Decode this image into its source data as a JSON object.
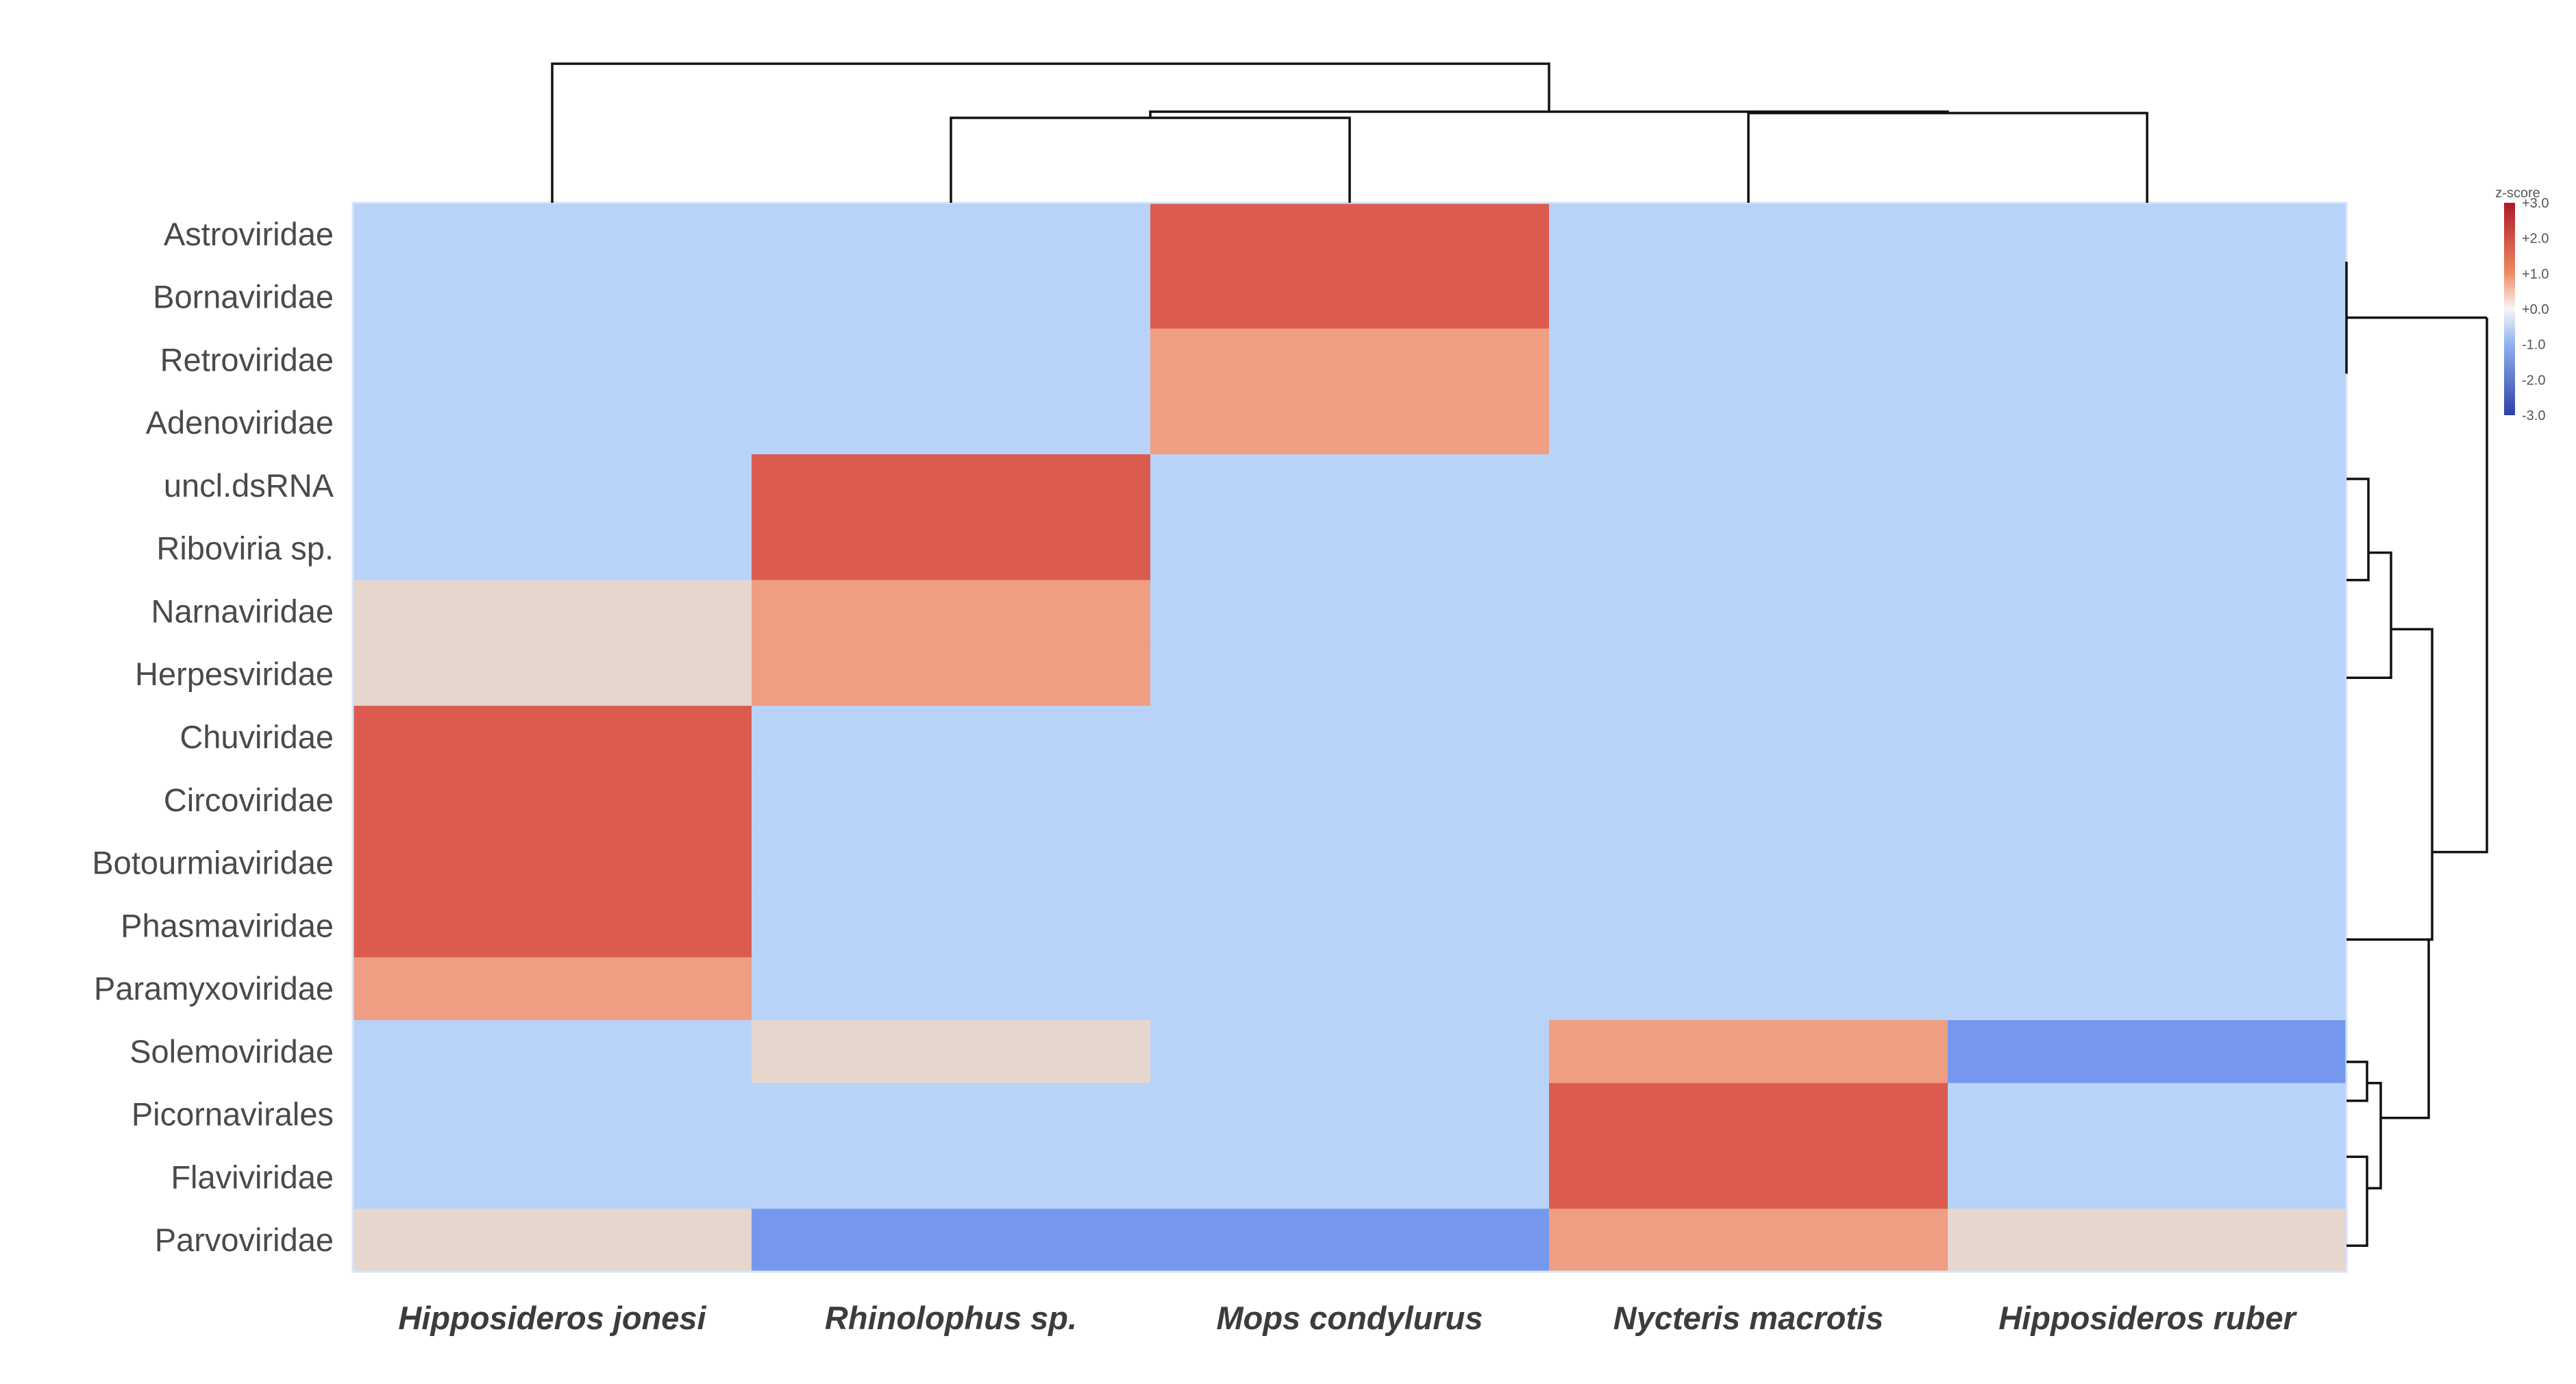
{
  "chart_data": {
    "type": "heatmap",
    "title": "",
    "rows": [
      "Astroviridae",
      "Bornaviridae",
      "Retroviridae",
      "Adenoviridae",
      "uncl.dsRNA",
      "Riboviria  sp.",
      "Narnaviridae",
      "Herpesviridae",
      "Chuviridae",
      "Circoviridae",
      "Botourmiaviridae",
      "Phasmaviridae",
      "Paramyxoviridae",
      "Solemoviridae",
      "Picornavirales",
      "Flaviviridae",
      "Parvoviridae"
    ],
    "columns": [
      "Hipposideros  jonesi",
      "Rhinolophus  sp.",
      "Mops condylurus",
      "Nycteris  macrotis",
      "Hipposideros  ruber"
    ],
    "values": [
      [
        -1,
        -1,
        2,
        -1,
        -1
      ],
      [
        -1,
        -1,
        2,
        -1,
        -1
      ],
      [
        -1,
        -1,
        1,
        -1,
        -1
      ],
      [
        -1,
        -1,
        1,
        -1,
        -1
      ],
      [
        -1,
        2,
        -1,
        -1,
        -1
      ],
      [
        -1,
        2,
        -1,
        -1,
        -1
      ],
      [
        0,
        1,
        -1,
        -1,
        -1
      ],
      [
        0,
        1,
        -1,
        -1,
        -1
      ],
      [
        2,
        -1,
        -1,
        -1,
        -1
      ],
      [
        2,
        -1,
        -1,
        -1,
        -1
      ],
      [
        2,
        -1,
        -1,
        -1,
        -1
      ],
      [
        2,
        -1,
        -1,
        -1,
        -1
      ],
      [
        1,
        -1,
        -1,
        -1,
        -1
      ],
      [
        -1,
        0,
        -1,
        1,
        -2
      ],
      [
        -1,
        -1,
        -1,
        2,
        -1
      ],
      [
        -1,
        -1,
        -1,
        2,
        -1
      ],
      [
        0,
        -2,
        -2,
        1,
        0
      ]
    ],
    "color_scale": {
      "title": "z-score",
      "min": -3,
      "max": 3,
      "ticks": [
        "+3.0",
        "+2.0",
        "+1.0",
        "+0.0",
        "-1.0",
        "-2.0",
        "-3.0"
      ],
      "high_color": "#b2182b",
      "low_color": "#2c3fa8"
    },
    "cell_colors": {
      "2": "#db5c4e",
      "1": "#ef9e83",
      "0": "#e7d6cd",
      "-1": "#b9d2f8",
      "-2": "#7598ee"
    },
    "column_dendrogram": true,
    "row_dendrogram": true
  }
}
